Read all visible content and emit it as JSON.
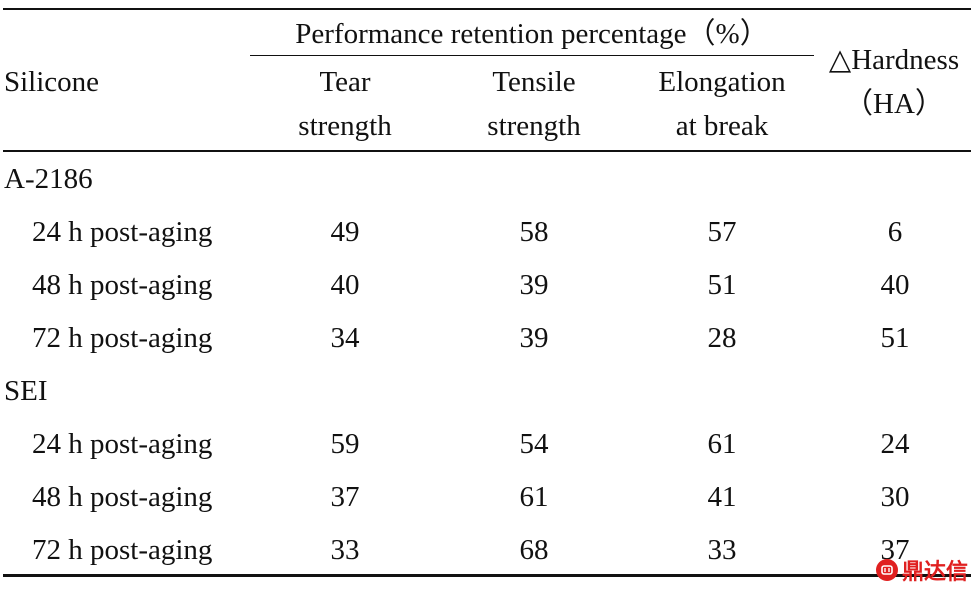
{
  "header": {
    "silicone": "Silicone",
    "group": "Performance retention percentage（%）",
    "tear_line1": "Tear",
    "tear_line2": "strength",
    "tensile_line1": "Tensile",
    "tensile_line2": "strength",
    "elong_line1": "Elongation",
    "elong_line2": "at break",
    "hard_line1": "△Hardness",
    "hard_line2": "（HA）"
  },
  "groups": [
    {
      "name": "A-2186",
      "rows": [
        {
          "label": "24 h post-aging",
          "tear": "49",
          "tensile": "58",
          "elong": "57",
          "hard": "6"
        },
        {
          "label": "48 h post-aging",
          "tear": "40",
          "tensile": "39",
          "elong": "51",
          "hard": "40"
        },
        {
          "label": "72 h post-aging",
          "tear": "34",
          "tensile": "39",
          "elong": "28",
          "hard": "51"
        }
      ]
    },
    {
      "name": "SEI",
      "rows": [
        {
          "label": "24 h post-aging",
          "tear": "59",
          "tensile": "54",
          "elong": "61",
          "hard": "24"
        },
        {
          "label": "48 h post-aging",
          "tear": "37",
          "tensile": "61",
          "elong": "41",
          "hard": "30"
        },
        {
          "label": "72 h post-aging",
          "tear": "33",
          "tensile": "68",
          "elong": "33",
          "hard": "37"
        }
      ]
    }
  ],
  "watermark": {
    "text": "鼎达信",
    "icon": "brand-logo-icon",
    "color": "#e02020"
  }
}
